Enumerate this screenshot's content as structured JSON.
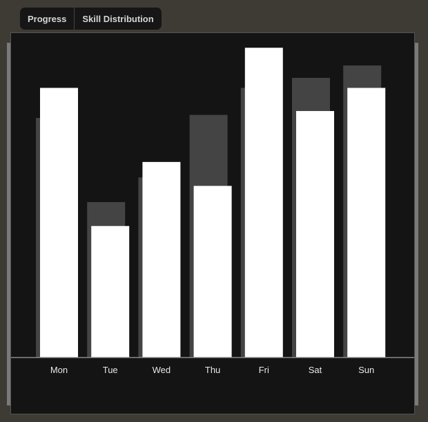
{
  "tabs": [
    {
      "label": "Progress"
    },
    {
      "label": "Skill Distribution"
    }
  ],
  "chart_data": {
    "type": "bar",
    "categories": [
      "Mon",
      "Tue",
      "Wed",
      "Thu",
      "Fri",
      "Sat",
      "Sun"
    ],
    "series": [
      {
        "values": [
          310,
          201,
          233,
          314,
          349,
          362,
          378
        ],
        "color": "#444444"
      },
      {
        "values": [
          349,
          170,
          253,
          222,
          401,
          319,
          349
        ],
        "color": "#ffffff"
      }
    ],
    "ylim": [
      0,
      420
    ],
    "grid": false,
    "legend": "none"
  }
}
